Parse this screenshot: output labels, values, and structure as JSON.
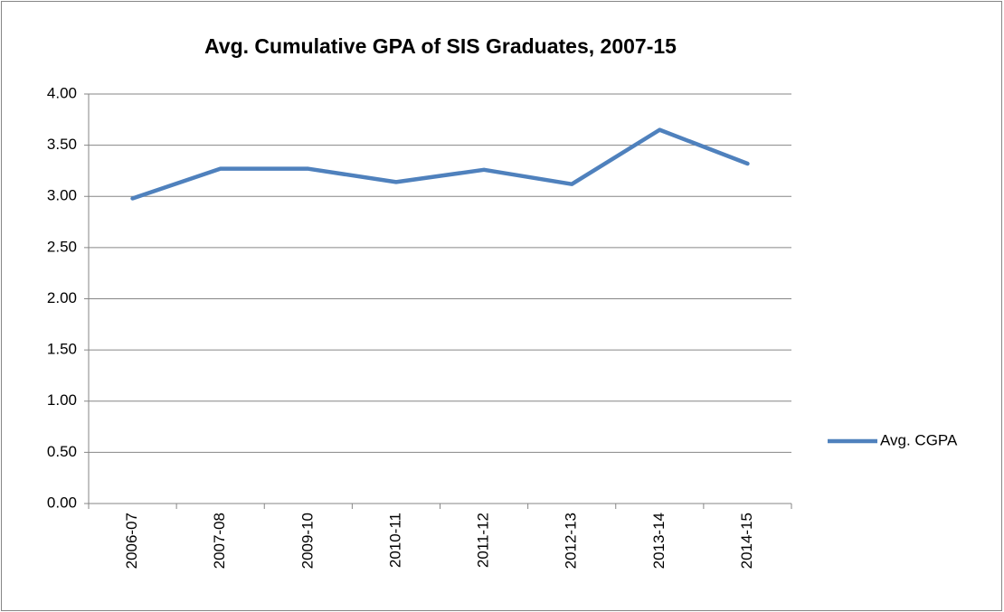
{
  "chart_data": {
    "type": "line",
    "title": "Avg. Cumulative GPA of SIS Graduates, 2007-15",
    "categories": [
      "2006-07",
      "2007-08",
      "2009-10",
      "2010-11",
      "2011-12",
      "2012-13",
      "2013-14",
      "2014-15"
    ],
    "series": [
      {
        "name": "Avg. CGPA",
        "color": "#4f81bd",
        "values": [
          2.98,
          3.27,
          3.27,
          3.14,
          3.26,
          3.12,
          3.65,
          3.32
        ]
      }
    ],
    "ylim": [
      0,
      4
    ],
    "yticks": [
      {
        "value": 0,
        "label": "0.00"
      },
      {
        "value": 0.5,
        "label": "0.50"
      },
      {
        "value": 1,
        "label": "1.00"
      },
      {
        "value": 1.5,
        "label": "1.50"
      },
      {
        "value": 2,
        "label": "2.00"
      },
      {
        "value": 2.5,
        "label": "2.50"
      },
      {
        "value": 3,
        "label": "3.00"
      },
      {
        "value": 3.5,
        "label": "3.50"
      },
      {
        "value": 4,
        "label": "4.00"
      }
    ],
    "grid": true,
    "legend": "right"
  }
}
